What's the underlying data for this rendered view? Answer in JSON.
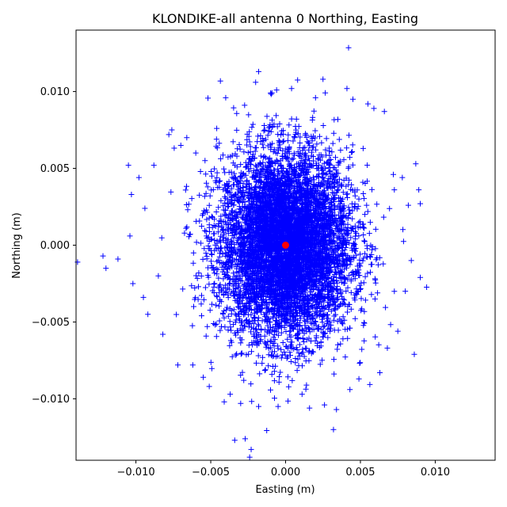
{
  "chart_data": {
    "type": "scatter",
    "title": "KLONDIKE-all antenna 0 Northing, Easting",
    "xlabel": "Easting (m)",
    "ylabel": "Northing (m)",
    "xlim": [
      -0.014,
      0.014
    ],
    "ylim": [
      -0.014,
      0.014
    ],
    "xticks": [
      -0.01,
      -0.005,
      0.0,
      0.005,
      0.01
    ],
    "xtick_labels": [
      "−0.010",
      "−0.005",
      "0.000",
      "0.005",
      "0.010"
    ],
    "yticks": [
      0.01,
      0.005,
      0.0,
      -0.005,
      -0.01
    ],
    "ytick_labels": [
      "0.010",
      "0.005",
      "0.000",
      "−0.005",
      "−0.010"
    ],
    "grid": false,
    "series": [
      {
        "marker": "plus",
        "color": "#0000ff",
        "points": [
          [
            -0.0139,
            -0.0011
          ],
          [
            -0.0122,
            -0.0007
          ],
          [
            -0.012,
            -0.0015
          ],
          [
            -0.0112,
            -0.0009
          ],
          [
            -0.0105,
            0.0052
          ],
          [
            -0.0103,
            0.0033
          ],
          [
            -0.0104,
            0.0006
          ],
          [
            -0.0102,
            -0.0025
          ],
          [
            -0.0098,
            0.0044
          ],
          [
            -0.0094,
            0.0024
          ],
          [
            -0.0095,
            -0.0034
          ],
          [
            -0.0092,
            -0.0045
          ],
          [
            -0.0088,
            0.0052
          ],
          [
            -0.0085,
            -0.002
          ],
          [
            -0.0082,
            -0.0058
          ],
          [
            -0.0078,
            0.0072
          ],
          [
            -0.0076,
            0.0075
          ],
          [
            -0.0072,
            -0.0078
          ],
          [
            -0.007,
            0.0065
          ],
          [
            -0.0066,
            0.007
          ],
          [
            -0.0062,
            -0.0078
          ],
          [
            -0.006,
            0.006
          ],
          [
            -0.0055,
            -0.0086
          ],
          [
            -0.0051,
            -0.0092
          ],
          [
            -0.0046,
            0.0076
          ],
          [
            -0.004,
            0.0096
          ],
          [
            -0.0041,
            -0.0102
          ],
          [
            -0.0037,
            -0.0097
          ],
          [
            -0.0034,
            -0.0127
          ],
          [
            -0.003,
            -0.0103
          ],
          [
            -0.0027,
            -0.0126
          ],
          [
            -0.0023,
            -0.0133
          ],
          [
            -0.0024,
            -0.0138
          ],
          [
            -0.0025,
            -0.0141
          ],
          [
            -0.002,
            0.0106
          ],
          [
            -0.0018,
            0.0113
          ],
          [
            -0.0018,
            -0.0105
          ],
          [
            -0.001,
            0.0099
          ],
          [
            -0.0006,
            0.0101
          ],
          [
            -0.0005,
            -0.0105
          ],
          [
            0.0004,
            0.0102
          ],
          [
            0.0011,
            -0.0097
          ],
          [
            0.0016,
            -0.0106
          ],
          [
            0.002,
            0.0096
          ],
          [
            0.0025,
            0.0108
          ],
          [
            0.0026,
            -0.0104
          ],
          [
            0.0032,
            -0.012
          ],
          [
            0.0034,
            -0.0107
          ],
          [
            0.0041,
            0.0102
          ],
          [
            0.0043,
            -0.0094
          ],
          [
            0.0045,
            0.0095
          ],
          [
            0.0049,
            -0.0087
          ],
          [
            0.0055,
            0.0092
          ],
          [
            0.0059,
            0.0089
          ],
          [
            0.0063,
            -0.0083
          ],
          [
            0.0066,
            0.0087
          ],
          [
            0.0068,
            -0.0067
          ],
          [
            0.0072,
            0.0046
          ],
          [
            0.0075,
            -0.0056
          ],
          [
            0.0078,
            0.0044
          ],
          [
            0.008,
            -0.003
          ],
          [
            0.0082,
            0.0026
          ],
          [
            0.0084,
            -0.001
          ],
          [
            0.0087,
            0.0053
          ],
          [
            0.0086,
            -0.0071
          ],
          [
            0.0089,
            0.0036
          ],
          [
            0.009,
            0.0027
          ],
          [
            0.009,
            -0.0021
          ]
        ],
        "cloud": {
          "description_center": [
            0.0,
            0.0
          ],
          "approx_n": 20000,
          "approx_std_easting": 0.0022,
          "approx_std_northing": 0.003
        }
      },
      {
        "marker": "circle",
        "color": "#ff0000",
        "points": [
          [
            0.0,
            0.0
          ]
        ]
      }
    ]
  }
}
